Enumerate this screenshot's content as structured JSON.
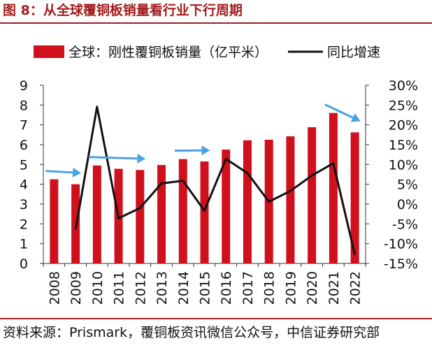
{
  "figure": {
    "title": "图 8：从全球覆铜板销量看行业下行周期",
    "source": "资料来源：Prismark，覆铜板资讯微信公众号，中信证券研究部"
  },
  "chart_data": {
    "type": "bar",
    "categories": [
      "2008",
      "2009",
      "2010",
      "2011",
      "2012",
      "2013",
      "2014",
      "2015",
      "2016",
      "2017",
      "2018",
      "2019",
      "2020",
      "2021",
      "2022"
    ],
    "series": [
      {
        "name": "全球：刚性覆铜板销量（亿平米）",
        "type": "bar",
        "axis": "left",
        "color": "#d0101b",
        "values": [
          4.25,
          4.0,
          4.95,
          4.78,
          4.72,
          4.97,
          5.27,
          5.15,
          5.75,
          6.22,
          6.25,
          6.42,
          6.88,
          7.6,
          6.62
        ]
      },
      {
        "name": "同比增速",
        "type": "line",
        "axis": "right",
        "color": "#111111",
        "values": [
          null,
          -6.5,
          24.6,
          -3.6,
          -1.0,
          5.2,
          5.9,
          -1.7,
          11.4,
          7.8,
          0.6,
          3.3,
          7.2,
          10.3,
          -12.8
        ]
      }
    ],
    "y_left": {
      "range": [
        0,
        9
      ],
      "ticks": [
        "0",
        "1",
        "2",
        "3",
        "4",
        "5",
        "6",
        "7",
        "8",
        "9"
      ]
    },
    "y_right": {
      "range": [
        -15,
        30
      ],
      "ticks": [
        "-15%",
        "-10%",
        "-5%",
        "0%",
        "5%",
        "10%",
        "15%",
        "20%",
        "25%",
        "30%"
      ]
    },
    "legend": {
      "position": "top"
    },
    "grid": false,
    "annotations": {
      "arrow_color": "#4ba3df",
      "downward_arrows": [
        {
          "from": "2008",
          "to": "2009"
        },
        {
          "from": "2010",
          "to": "2012"
        },
        {
          "from": "2014",
          "to": "2015"
        },
        {
          "from": "2021",
          "to": "2022"
        }
      ]
    }
  }
}
